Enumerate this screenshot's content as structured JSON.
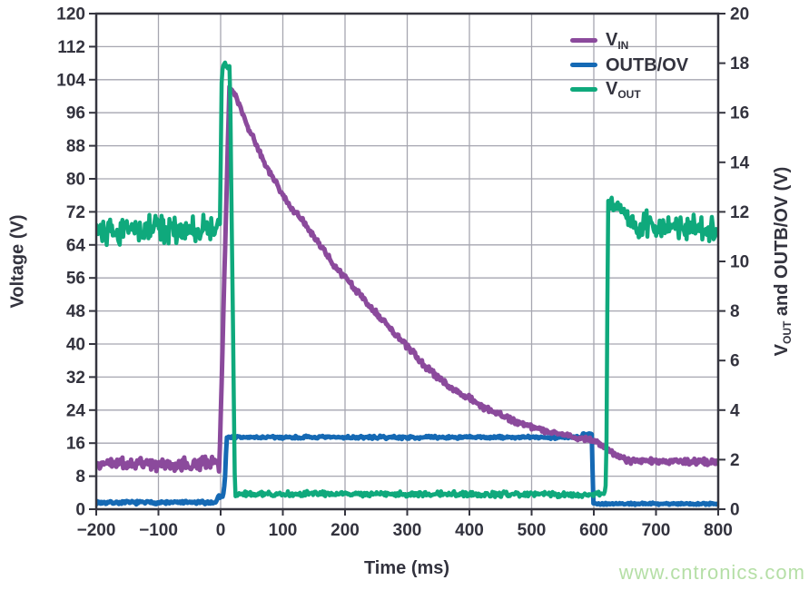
{
  "watermark": {
    "text": "www.cntronics.com",
    "color": "#b5dfa6"
  },
  "chart_data": {
    "type": "line",
    "title": "",
    "background": "#ffffff",
    "axis_color": "#35353f",
    "text_color": "#33333e",
    "grid": {
      "show": true,
      "color": "#a6a6b0"
    },
    "x_axis": {
      "label": "Time (ms)",
      "min": -200,
      "max": 800,
      "tick_step": 100,
      "tick_values": [
        -200,
        -100,
        0,
        100,
        200,
        300,
        400,
        500,
        600,
        700,
        800
      ],
      "tick_labels": [
        "−200",
        "−100",
        "0",
        "100",
        "200",
        "300",
        "400",
        "500",
        "600",
        "700",
        "800"
      ]
    },
    "left_axis": {
      "label": "Voltage (V)",
      "min": 0,
      "max": 120,
      "tick_step": 8,
      "tick_values": [
        120,
        112,
        104,
        96,
        88,
        80,
        72,
        64,
        56,
        48,
        40,
        32,
        24,
        16,
        8,
        0
      ],
      "tick_labels": [
        "120",
        "112",
        "104",
        "96",
        "88",
        "80",
        "72",
        "64",
        "56",
        "48",
        "40",
        "32",
        "24",
        "16",
        "8",
        "0"
      ]
    },
    "right_axis": {
      "label_parts": [
        {
          "text": "V"
        },
        {
          "sub": "OUT"
        },
        {
          "text": " and OUTB/OV (V)"
        }
      ],
      "min": 0,
      "max": 20,
      "tick_step": 2,
      "tick_values": [
        20,
        18,
        16,
        14,
        12,
        10,
        8,
        6,
        4,
        2,
        0
      ],
      "tick_labels": [
        "20",
        "18",
        "16",
        "14",
        "12",
        "10",
        "8",
        "6",
        "4",
        "2",
        "0"
      ]
    },
    "legend": {
      "position": "top-right",
      "items": [
        {
          "series": "vin",
          "main": "V",
          "sub": "IN"
        },
        {
          "series": "outb_ov",
          "main": "OUTB/OV",
          "sub": ""
        },
        {
          "series": "vout",
          "main": "V",
          "sub": "OUT"
        }
      ]
    },
    "draw_order": [
      "outb_ov",
      "vin",
      "vout"
    ],
    "series": [
      {
        "id": "vin",
        "name": "VIN",
        "axis": "left",
        "color": "#8b4a9c",
        "width": 5,
        "points_format": [
          "time_ms",
          "volts",
          "noise_amp"
        ],
        "points": [
          [
            -200,
            11,
            2.0
          ],
          [
            -2,
            11,
            2.0
          ],
          [
            14,
            102,
            0.6
          ],
          [
            24,
            100.5,
            0.8
          ],
          [
            40,
            94,
            0.9
          ],
          [
            70,
            84,
            0.9
          ],
          [
            109,
            74,
            0.9
          ],
          [
            141,
            68,
            0.9
          ],
          [
            180,
            59.5,
            0.9
          ],
          [
            235,
            50,
            0.9
          ],
          [
            280,
            42.5,
            0.9
          ],
          [
            330,
            34.5,
            0.9
          ],
          [
            371,
            29.4,
            0.9
          ],
          [
            420,
            25,
            0.9
          ],
          [
            470,
            21.5,
            0.8
          ],
          [
            517,
            19.2,
            0.8
          ],
          [
            560,
            17.8,
            0.8
          ],
          [
            600,
            16.5,
            0.8
          ],
          [
            618,
            15.2,
            0.8
          ],
          [
            638,
            12.8,
            0.8
          ],
          [
            658,
            11.7,
            0.9
          ],
          [
            800,
            11.4,
            0.9
          ]
        ]
      },
      {
        "id": "outb_ov",
        "name": "OUTB/OV",
        "axis": "right",
        "color": "#1569b4",
        "width": 5,
        "points_format": [
          "time_ms",
          "volts",
          "noise_amp"
        ],
        "points": [
          [
            -200,
            0.27,
            0.08
          ],
          [
            -8,
            0.27,
            0.08
          ],
          [
            -4,
            0.5,
            0.1
          ],
          [
            4,
            0.55,
            0.1
          ],
          [
            7,
            1.2,
            0.1
          ],
          [
            9.5,
            2.9,
            0.07
          ],
          [
            580,
            2.9,
            0.07
          ],
          [
            583,
            3.05,
            0.06
          ],
          [
            597,
            3.05,
            0.06
          ],
          [
            599,
            0.22,
            0.05
          ],
          [
            800,
            0.22,
            0.05
          ]
        ]
      },
      {
        "id": "vout",
        "name": "VOUT",
        "axis": "right",
        "color": "#0fa97c",
        "width": 4.5,
        "points_format": [
          "time_ms",
          "volts",
          "noise_amp"
        ],
        "points": [
          [
            -200,
            11.3,
            0.65
          ],
          [
            -1,
            11.3,
            0.65
          ],
          [
            2,
            17.9,
            0.22
          ],
          [
            8,
            18.0,
            0.18
          ],
          [
            15,
            17.7,
            0.25
          ],
          [
            19,
            9,
            0.3
          ],
          [
            23,
            0.62,
            0.13
          ],
          [
            617,
            0.6,
            0.13
          ],
          [
            620,
            1.2,
            0.2
          ],
          [
            623,
            12.4,
            0.28
          ],
          [
            642,
            12.15,
            0.33
          ],
          [
            662,
            11.5,
            0.6
          ],
          [
            800,
            11.3,
            0.6
          ]
        ]
      }
    ]
  }
}
